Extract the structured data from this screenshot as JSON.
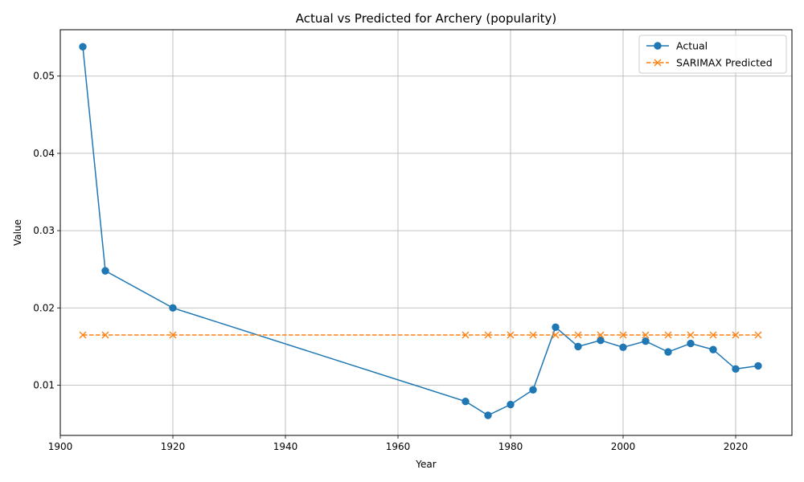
{
  "chart_data": {
    "type": "line",
    "title": "Actual vs Predicted for Archery (popularity)",
    "xlabel": "Year",
    "ylabel": "Value",
    "xlim": [
      1900,
      2030
    ],
    "ylim": [
      0.0035,
      0.056
    ],
    "xticks": [
      "1900",
      "1920",
      "1940",
      "1960",
      "1980",
      "2000",
      "2020"
    ],
    "yticks": [
      "0.01",
      "0.02",
      "0.03",
      "0.04",
      "0.05"
    ],
    "grid": true,
    "legend_position": "top-right",
    "x": [
      1904,
      1908,
      1920,
      1972,
      1976,
      1980,
      1984,
      1988,
      1992,
      1996,
      2000,
      2004,
      2008,
      2012,
      2016,
      2020,
      2024
    ],
    "series": [
      {
        "name": "Actual",
        "color": "#1f77b4",
        "marker": "circle",
        "linestyle": "solid",
        "values": [
          0.0538,
          0.0248,
          0.02,
          0.0079,
          0.0061,
          0.0075,
          0.0094,
          0.0175,
          0.015,
          0.0158,
          0.0149,
          0.0157,
          0.0143,
          0.0154,
          0.0146,
          0.0121,
          0.0125
        ]
      },
      {
        "name": "SARIMAX Predicted",
        "color": "#ff7f0e",
        "marker": "x",
        "linestyle": "dashed",
        "values": [
          0.0165,
          0.0165,
          0.0165,
          0.0165,
          0.0165,
          0.0165,
          0.0165,
          0.0165,
          0.0165,
          0.0165,
          0.0165,
          0.0165,
          0.0165,
          0.0165,
          0.0165,
          0.0165,
          0.0165
        ]
      }
    ]
  }
}
